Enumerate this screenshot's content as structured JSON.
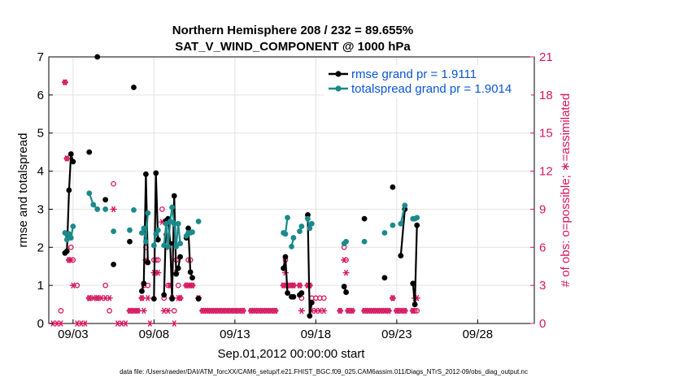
{
  "chart_data": {
    "type": "line",
    "title": "Northern Hemisphere 208 / 232 = 89.655%",
    "subtitle": "SAT_V_WIND_COMPONENT @ 1000 hPa",
    "xlabel": "Sep.01,2012 00:00:00 start",
    "ylabel": "rmse and totalspread",
    "ylabel_right": "# of obs: o=possible; ∗=assimilated",
    "footnote": "data file: /Users/raeder/DAI/ATM_forcXX/CAM6_setup/f.e21.FHIST_BGC.f09_025.CAM6assim.011/Diags_NTrS_2012-09/obs_diag_output.nc",
    "x_range_days": [
      0.5,
      30.5
    ],
    "ylim": [
      0,
      7
    ],
    "ylim_right": [
      0,
      21
    ],
    "x_ticks": [
      {
        "day": 2,
        "label": "09/03"
      },
      {
        "day": 7,
        "label": "09/08"
      },
      {
        "day": 12,
        "label": "09/13"
      },
      {
        "day": 17,
        "label": "09/18"
      },
      {
        "day": 22,
        "label": "09/23"
      },
      {
        "day": 27,
        "label": "09/28"
      }
    ],
    "y_ticks": [
      "0",
      "1",
      "2",
      "3",
      "4",
      "5",
      "6",
      "7"
    ],
    "y_ticks_right": [
      "0",
      "3",
      "6",
      "9",
      "12",
      "15",
      "18",
      "21"
    ],
    "colors": {
      "rmse": "#000000",
      "spread": "#1a8a8a",
      "obs": "#d6175e",
      "legend_text": "#0b55d6",
      "grid": "#e2e2e2"
    },
    "series": [
      {
        "name": "rmse grand pr = 1.9111",
        "color": "#000000",
        "points": [
          [
            1.5,
            1.85
          ],
          [
            1.62,
            1.9
          ],
          [
            1.75,
            3.5
          ],
          [
            1.87,
            4.45
          ],
          [
            2.0,
            4.25
          ],
          null,
          [
            3.0,
            4.5
          ],
          null,
          [
            3.5,
            7.0
          ],
          null,
          [
            4.0,
            3.25
          ],
          null,
          [
            4.5,
            1.55
          ],
          null,
          [
            5.5,
            2.15
          ],
          null,
          [
            5.75,
            6.2
          ],
          null,
          [
            6.25,
            0.85
          ],
          [
            6.37,
            1.05
          ],
          [
            6.5,
            3.92
          ],
          [
            6.62,
            1.6
          ],
          null,
          [
            7.0,
            0.65
          ],
          [
            7.12,
            3.95
          ],
          [
            7.25,
            2.2
          ],
          null,
          [
            7.62,
            0.75
          ],
          [
            7.75,
            2.7
          ],
          [
            7.87,
            2.75
          ],
          [
            8.0,
            2.1
          ],
          [
            8.12,
            0.65
          ],
          [
            8.25,
            3.35
          ],
          [
            8.37,
            1.3
          ],
          [
            8.5,
            1.45
          ],
          [
            8.62,
            1.75
          ],
          null,
          [
            9.0,
            2.25
          ],
          [
            9.12,
            2.5
          ],
          [
            9.25,
            1.35
          ],
          [
            9.37,
            1.2
          ],
          null,
          [
            9.75,
            0.65
          ],
          null,
          [
            15.0,
            1.45
          ],
          [
            15.12,
            1.75
          ],
          [
            15.25,
            0.8
          ],
          null,
          [
            15.5,
            0.7
          ],
          [
            15.62,
            0.7
          ],
          null,
          [
            16.0,
            0.75
          ],
          [
            16.12,
            0.8
          ],
          null,
          [
            16.5,
            2.85
          ],
          [
            16.62,
            0.2
          ],
          [
            16.75,
            0.55
          ],
          null,
          [
            18.75,
            0.97
          ],
          [
            18.87,
            0.82
          ],
          null,
          [
            20.0,
            2.75
          ],
          null,
          [
            21.25,
            1.2
          ],
          null,
          [
            21.75,
            3.58
          ],
          null,
          [
            22.25,
            1.78
          ],
          [
            22.5,
            3.0
          ],
          null,
          [
            23.0,
            1.05
          ],
          [
            23.12,
            0.5
          ],
          [
            23.25,
            2.58
          ]
        ]
      },
      {
        "name": "totalspread grand pr = 1.9014",
        "color": "#1a8a8a",
        "points": [
          [
            1.5,
            2.38
          ],
          [
            1.62,
            2.2
          ],
          [
            1.75,
            2.35
          ],
          [
            1.87,
            2.25
          ],
          [
            2.0,
            2.55
          ],
          null,
          [
            3.0,
            3.42
          ],
          [
            3.25,
            3.12
          ],
          [
            3.5,
            3.0
          ],
          null,
          [
            4.0,
            3.0
          ],
          null,
          [
            4.5,
            2.42
          ],
          null,
          [
            5.5,
            2.45
          ],
          null,
          [
            5.75,
            2.98
          ],
          null,
          [
            6.25,
            2.38
          ],
          [
            6.37,
            2.5
          ],
          [
            6.5,
            2.15
          ],
          [
            6.62,
            2.9
          ],
          null,
          [
            7.0,
            2.05
          ],
          [
            7.12,
            2.35
          ],
          [
            7.25,
            2.45
          ],
          null,
          [
            7.62,
            2.05
          ],
          [
            7.75,
            2.62
          ],
          [
            7.87,
            2.02
          ],
          [
            8.0,
            2.68
          ],
          [
            8.12,
            3.05
          ],
          [
            8.25,
            2.62
          ],
          [
            8.37,
            2.02
          ],
          [
            8.5,
            2.62
          ],
          [
            8.62,
            2.1
          ],
          null,
          [
            9.0,
            2.3
          ],
          [
            9.12,
            2.38
          ],
          [
            9.25,
            2.38
          ],
          [
            9.37,
            2.4
          ],
          null,
          [
            9.75,
            2.68
          ],
          null,
          [
            15.0,
            2.38
          ],
          [
            15.12,
            2.35
          ],
          [
            15.25,
            2.78
          ],
          null,
          [
            15.5,
            2.02
          ],
          [
            15.62,
            2.25
          ],
          null,
          [
            16.0,
            2.42
          ],
          [
            16.12,
            2.55
          ],
          null,
          [
            16.5,
            2.75
          ],
          [
            16.62,
            2.5
          ],
          [
            16.75,
            2.62
          ],
          null,
          [
            18.75,
            2.1
          ],
          [
            18.87,
            2.15
          ],
          null,
          [
            20.0,
            2.15
          ],
          null,
          [
            21.25,
            2.38
          ],
          null,
          [
            21.75,
            2.58
          ],
          null,
          [
            22.25,
            2.62
          ],
          [
            22.5,
            3.1
          ],
          null,
          [
            23.0,
            2.75
          ],
          [
            23.12,
            2.75
          ],
          [
            23.25,
            2.78
          ]
        ]
      }
    ],
    "obs_possible": [
      [
        1.25,
        1
      ],
      [
        1.5,
        19
      ],
      [
        1.62,
        13
      ],
      [
        1.75,
        5
      ],
      [
        1.87,
        6
      ],
      [
        2.0,
        5
      ],
      [
        2.25,
        3
      ],
      [
        3.0,
        2
      ],
      [
        3.5,
        2
      ],
      [
        4.0,
        3
      ],
      [
        4.25,
        1
      ],
      [
        4.5,
        11
      ],
      [
        5.5,
        1
      ],
      [
        5.75,
        1
      ],
      [
        6.0,
        1
      ],
      [
        6.25,
        2
      ],
      [
        6.37,
        3
      ],
      [
        6.5,
        6
      ],
      [
        6.62,
        3
      ],
      [
        7.0,
        5
      ],
      [
        7.12,
        5
      ],
      [
        7.25,
        5
      ],
      [
        7.5,
        9
      ],
      [
        7.62,
        2
      ],
      [
        7.75,
        7
      ],
      [
        7.87,
        3
      ],
      [
        8.0,
        3
      ],
      [
        8.12,
        2
      ],
      [
        8.25,
        1
      ],
      [
        8.37,
        5
      ],
      [
        8.5,
        3
      ],
      [
        8.62,
        2
      ],
      [
        9.0,
        3
      ],
      [
        9.12,
        5
      ],
      [
        9.25,
        5
      ],
      [
        9.37,
        3
      ],
      [
        9.75,
        2
      ],
      [
        10.0,
        1
      ],
      [
        10.25,
        1
      ],
      [
        10.5,
        1
      ],
      [
        10.75,
        1
      ],
      [
        11.0,
        1
      ],
      [
        11.25,
        1
      ],
      [
        11.5,
        1
      ],
      [
        11.75,
        1
      ],
      [
        12.0,
        1
      ],
      [
        12.25,
        1
      ],
      [
        12.5,
        1
      ],
      [
        13.0,
        1
      ],
      [
        13.25,
        1
      ],
      [
        13.5,
        1
      ],
      [
        13.75,
        1
      ],
      [
        14.0,
        1
      ],
      [
        14.25,
        1
      ],
      [
        14.5,
        1
      ],
      [
        15.0,
        3
      ],
      [
        15.12,
        5
      ],
      [
        15.25,
        3
      ],
      [
        15.5,
        3
      ],
      [
        15.62,
        3
      ],
      [
        16.0,
        3
      ],
      [
        16.12,
        2
      ],
      [
        16.5,
        3
      ],
      [
        16.62,
        3
      ],
      [
        16.75,
        2
      ],
      [
        17.0,
        2
      ],
      [
        17.25,
        2
      ],
      [
        17.5,
        2
      ],
      [
        18.5,
        1
      ],
      [
        18.75,
        6
      ],
      [
        18.87,
        5
      ],
      [
        19.0,
        1
      ],
      [
        19.25,
        1
      ],
      [
        20.0,
        1
      ],
      [
        20.25,
        1
      ],
      [
        20.5,
        1
      ],
      [
        20.75,
        1
      ],
      [
        21.0,
        1
      ],
      [
        21.25,
        1
      ],
      [
        21.5,
        1
      ],
      [
        21.75,
        2
      ],
      [
        22.0,
        1
      ],
      [
        22.25,
        1
      ],
      [
        22.5,
        1
      ],
      [
        23.0,
        1
      ],
      [
        23.12,
        1
      ],
      [
        23.25,
        1
      ]
    ],
    "obs_assimilated": [
      [
        0.75,
        0
      ],
      [
        1.0,
        0
      ],
      [
        1.25,
        0
      ],
      [
        1.5,
        19
      ],
      [
        1.62,
        13
      ],
      [
        1.75,
        5
      ],
      [
        1.87,
        5
      ],
      [
        2.0,
        3
      ],
      [
        2.25,
        0
      ],
      [
        2.5,
        0
      ],
      [
        2.75,
        0
      ],
      [
        3.0,
        2
      ],
      [
        3.25,
        2
      ],
      [
        3.5,
        2
      ],
      [
        3.75,
        2
      ],
      [
        4.0,
        2
      ],
      [
        4.25,
        2
      ],
      [
        4.5,
        9
      ],
      [
        4.75,
        0
      ],
      [
        5.0,
        0
      ],
      [
        5.25,
        0
      ],
      [
        5.5,
        1
      ],
      [
        5.75,
        1
      ],
      [
        6.0,
        1
      ],
      [
        6.25,
        2
      ],
      [
        6.37,
        1
      ],
      [
        6.5,
        5
      ],
      [
        6.62,
        2
      ],
      [
        6.75,
        0
      ],
      [
        7.0,
        4
      ],
      [
        7.12,
        4
      ],
      [
        7.25,
        4
      ],
      [
        7.5,
        8
      ],
      [
        7.62,
        1
      ],
      [
        7.75,
        6
      ],
      [
        7.87,
        1
      ],
      [
        8.0,
        3
      ],
      [
        8.12,
        2
      ],
      [
        8.25,
        0
      ],
      [
        8.37,
        4
      ],
      [
        8.5,
        2
      ],
      [
        8.62,
        2
      ],
      [
        9.0,
        3
      ],
      [
        9.12,
        3
      ],
      [
        9.25,
        3
      ],
      [
        9.37,
        3
      ],
      [
        9.75,
        2
      ],
      [
        10.0,
        1
      ],
      [
        10.25,
        1
      ],
      [
        10.5,
        1
      ],
      [
        10.75,
        1
      ],
      [
        11.0,
        1
      ],
      [
        11.25,
        1
      ],
      [
        11.5,
        1
      ],
      [
        11.75,
        1
      ],
      [
        12.0,
        1
      ],
      [
        12.25,
        1
      ],
      [
        12.5,
        1
      ],
      [
        13.0,
        1
      ],
      [
        13.25,
        1
      ],
      [
        13.5,
        1
      ],
      [
        13.75,
        1
      ],
      [
        14.0,
        1
      ],
      [
        14.25,
        1
      ],
      [
        14.5,
        1
      ],
      [
        15.0,
        3
      ],
      [
        15.12,
        4
      ],
      [
        15.25,
        3
      ],
      [
        15.5,
        3
      ],
      [
        15.62,
        3
      ],
      [
        16.0,
        3
      ],
      [
        16.12,
        1
      ],
      [
        16.5,
        3
      ],
      [
        16.62,
        3
      ],
      [
        16.75,
        1
      ],
      [
        17.0,
        1
      ],
      [
        17.25,
        1
      ],
      [
        17.5,
        1
      ],
      [
        18.5,
        1
      ],
      [
        18.75,
        5
      ],
      [
        18.87,
        4
      ],
      [
        19.0,
        1
      ],
      [
        19.25,
        1
      ],
      [
        20.0,
        1
      ],
      [
        20.25,
        1
      ],
      [
        20.5,
        1
      ],
      [
        20.75,
        1
      ],
      [
        21.0,
        1
      ],
      [
        21.25,
        1
      ],
      [
        21.5,
        1
      ],
      [
        21.75,
        2
      ],
      [
        22.0,
        1
      ],
      [
        22.25,
        1
      ],
      [
        22.5,
        1
      ],
      [
        23.0,
        1
      ],
      [
        23.12,
        2
      ],
      [
        23.25,
        2
      ]
    ]
  }
}
